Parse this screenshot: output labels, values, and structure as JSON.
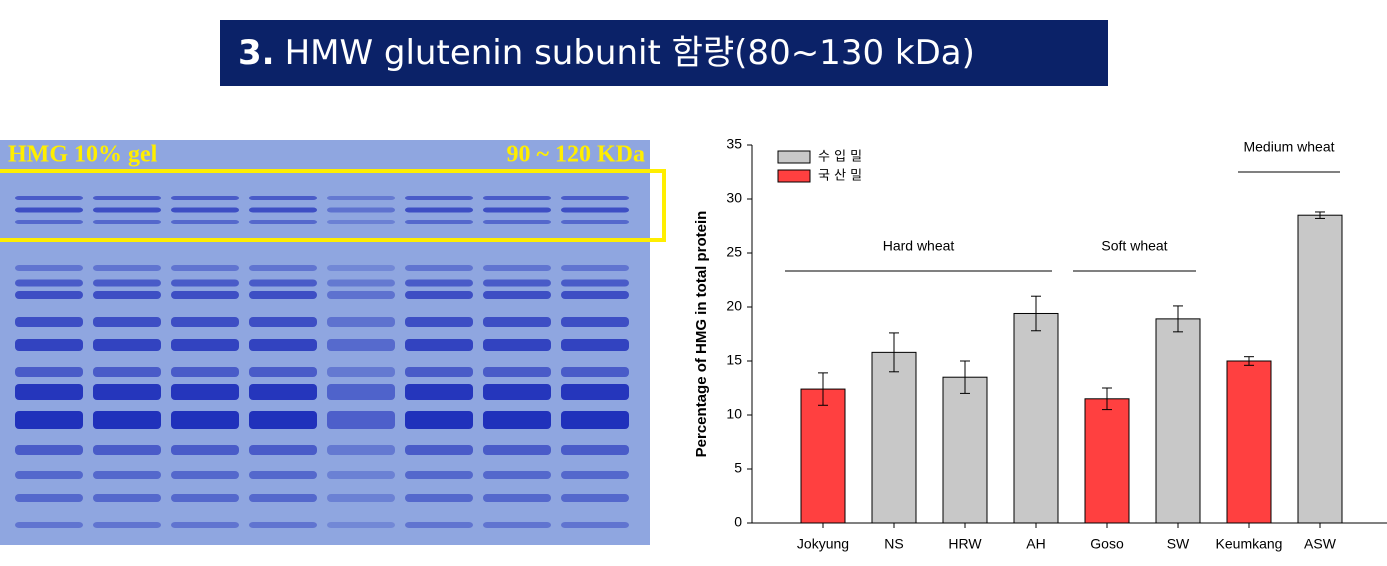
{
  "title": {
    "number": "3.",
    "text": "HMW glutenin subunit 함량(80~130 kDa)"
  },
  "gel": {
    "label_left": "HMG 10% gel",
    "label_right": "90 ~ 120 KDa"
  },
  "chart_data": {
    "type": "bar",
    "y_label": "Percentage of HMG in total protein",
    "categories": [
      "Jokyung",
      "NS",
      "HRW",
      "AH",
      "Goso",
      "SW",
      "Keumkang",
      "ASW"
    ],
    "series": [
      {
        "name": "수 입 밀",
        "color": "#c8c8c8",
        "values": [
          null,
          15.8,
          13.5,
          19.4,
          null,
          18.9,
          null,
          28.5
        ],
        "errors": [
          null,
          1.8,
          1.5,
          1.6,
          null,
          1.2,
          null,
          0.3
        ]
      },
      {
        "name": "국 산 밀",
        "color": "#ff4040",
        "values": [
          12.4,
          null,
          null,
          null,
          11.5,
          null,
          15.0,
          null
        ],
        "errors": [
          1.5,
          null,
          null,
          null,
          1.0,
          null,
          0.4,
          null
        ]
      }
    ],
    "annotations": [
      "Hard wheat",
      "Soft wheat",
      "Medium wheat"
    ],
    "ylim": [
      0,
      35
    ],
    "yticks": [
      0,
      5,
      10,
      15,
      20,
      25,
      30,
      35
    ],
    "grid": false,
    "legend": "upper left"
  }
}
